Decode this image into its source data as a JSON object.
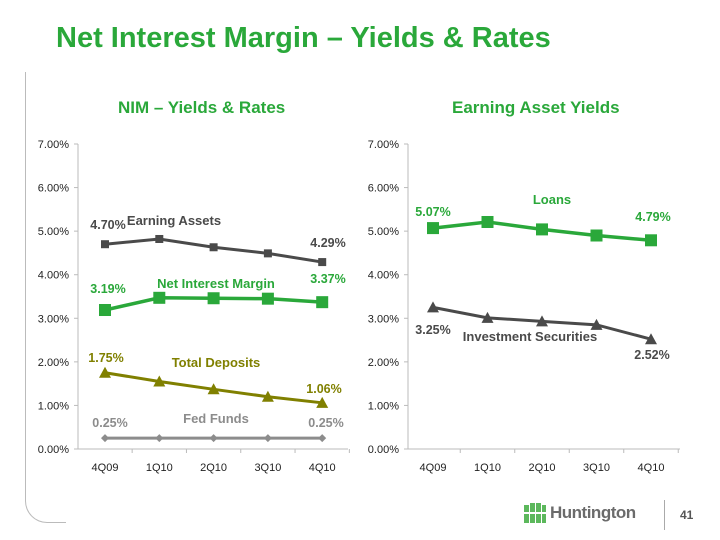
{
  "title": "Net Interest Margin – Yields & Rates",
  "page_number": "41",
  "logo_text": "Huntington",
  "colors": {
    "green": "#2aa83a",
    "dark": "#4a4a4a",
    "olive": "#808000",
    "gray": "#8c8c8c"
  },
  "chart_data": [
    {
      "type": "line",
      "title": "NIM – Yields & Rates",
      "categories": [
        "4Q09",
        "1Q10",
        "2Q10",
        "3Q10",
        "4Q10"
      ],
      "ylim": [
        0,
        7
      ],
      "yticks": [
        "0.00%",
        "1.00%",
        "2.00%",
        "3.00%",
        "4.00%",
        "5.00%",
        "6.00%",
        "7.00%"
      ],
      "series": [
        {
          "name": "Earning Assets",
          "values": [
            4.7,
            4.82,
            4.63,
            4.49,
            4.29
          ],
          "labels": [
            "4.70%",
            "4.29%"
          ],
          "color": "#4a4a4a",
          "marker": "square-small"
        },
        {
          "name": "Net Interest Margin",
          "values": [
            3.19,
            3.47,
            3.46,
            3.45,
            3.37
          ],
          "labels": [
            "3.19%",
            "3.37%"
          ],
          "color": "#2aa83a",
          "marker": "square"
        },
        {
          "name": "Total Deposits",
          "values": [
            1.75,
            1.55,
            1.37,
            1.2,
            1.06
          ],
          "labels": [
            "1.75%",
            "1.06%"
          ],
          "color": "#808000",
          "marker": "triangle"
        },
        {
          "name": "Fed Funds",
          "values": [
            0.25,
            0.25,
            0.25,
            0.25,
            0.25
          ],
          "labels": [
            "0.25%",
            "0.25%"
          ],
          "color": "#8c8c8c",
          "marker": "diamond"
        }
      ]
    },
    {
      "type": "line",
      "title": "Earning Asset Yields",
      "categories": [
        "4Q09",
        "1Q10",
        "2Q10",
        "3Q10",
        "4Q10"
      ],
      "ylim": [
        0,
        7
      ],
      "yticks": [
        "0.00%",
        "1.00%",
        "2.00%",
        "3.00%",
        "4.00%",
        "5.00%",
        "6.00%",
        "7.00%"
      ],
      "series": [
        {
          "name": "Loans",
          "values": [
            5.07,
            5.21,
            5.04,
            4.9,
            4.79
          ],
          "labels": [
            "5.07%",
            "4.79%"
          ],
          "color": "#2aa83a",
          "marker": "square"
        },
        {
          "name": "Investment Securities",
          "values": [
            3.25,
            3.01,
            2.93,
            2.85,
            2.52
          ],
          "labels": [
            "3.25%",
            "2.52%"
          ],
          "color": "#4a4a4a",
          "marker": "triangle"
        }
      ]
    }
  ]
}
